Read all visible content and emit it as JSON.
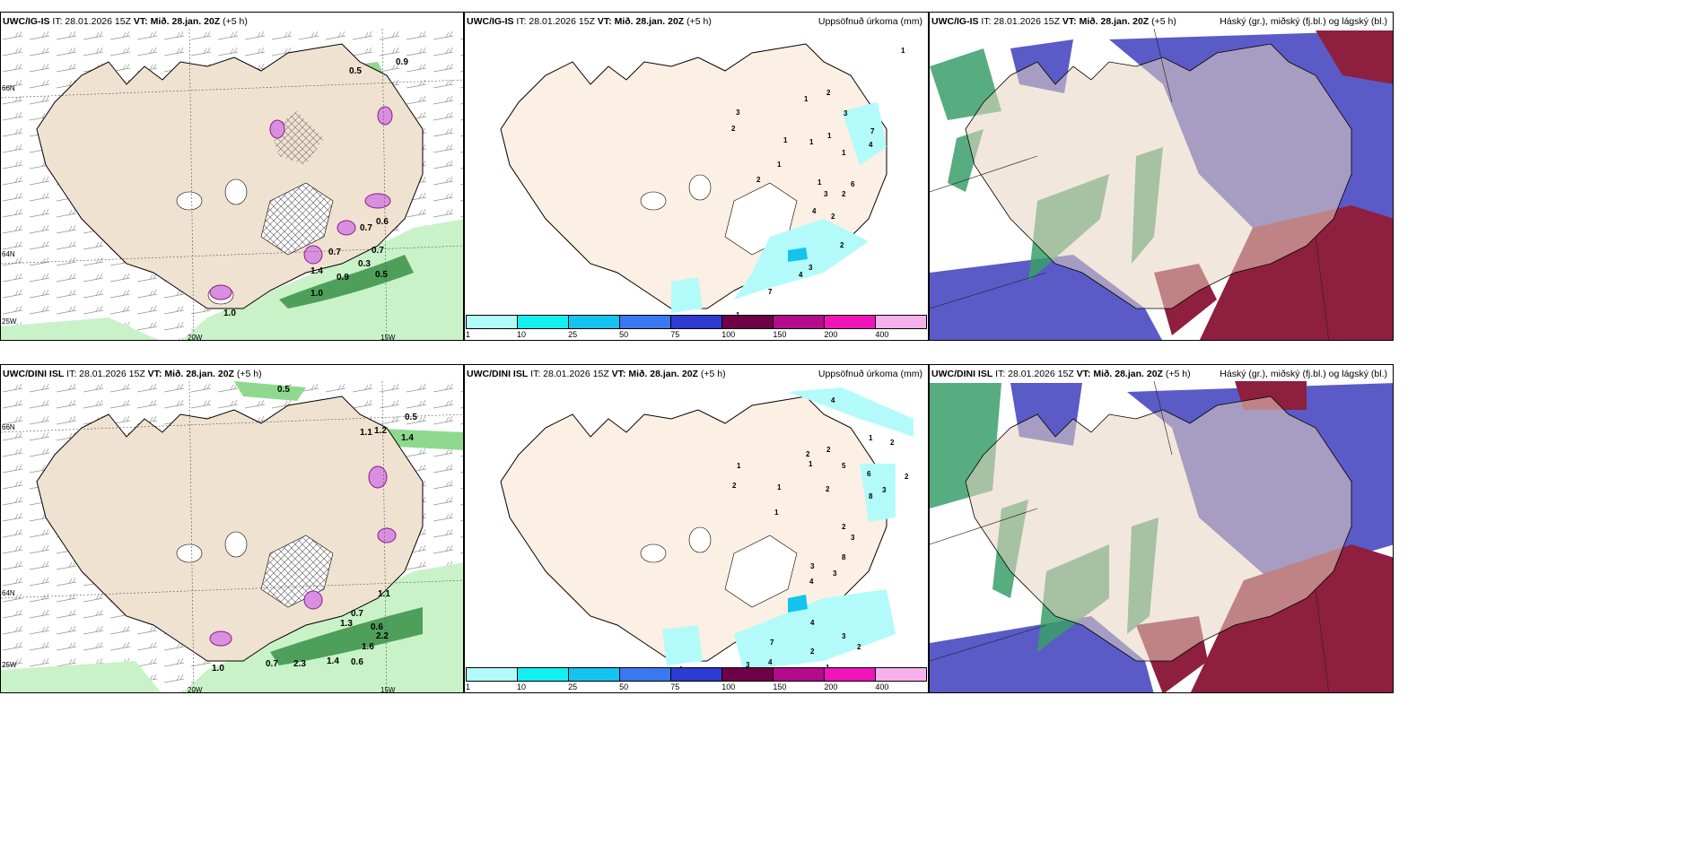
{
  "panels": [
    {
      "model": "UWC/IG-IS",
      "it_label": "IT: 28.01.2026 15Z",
      "vt_label": "VT: Mið. 28.jan. 20Z",
      "lead": "(+5 h)",
      "product": ""
    },
    {
      "model": "UWC/IG-IS",
      "it_label": "IT: 28.01.2026 15Z",
      "vt_label": "VT: Mið. 28.jan. 20Z",
      "lead": "(+5 h)",
      "product": "Uppsöfnuð úrkoma (mm)"
    },
    {
      "model": "UWC/IG-IS",
      "it_label": "IT: 28.01.2026 15Z",
      "vt_label": "VT: Mið. 28.jan. 20Z",
      "lead": "(+5 h)",
      "product": "Háský (gr.), miðský (fj.bl.) og lágský (bl.)"
    },
    {
      "model": "UWC/DINI ISL",
      "it_label": "IT: 28.01.2026 15Z",
      "vt_label": "VT: Mið. 28.jan. 20Z",
      "lead": "(+5 h)",
      "product": ""
    },
    {
      "model": "UWC/DINI ISL",
      "it_label": "IT: 28.01.2026 15Z",
      "vt_label": "VT: Mið. 28.jan. 20Z",
      "lead": "(+5 h)",
      "product": "Uppsöfnuð úrkoma (mm)"
    },
    {
      "model": "UWC/DINI ISL",
      "it_label": "IT: 28.01.2026 15Z",
      "vt_label": "VT: Mið. 28.jan. 20Z",
      "lead": "(+5 h)",
      "product": "Háský (gr.), miðský (fj.bl.) og lágský (bl.)"
    }
  ],
  "axes": {
    "lat_66": "66N",
    "lat_64": "64N",
    "lon_25": "25W",
    "lon_20": "20W",
    "lon_15": "15W"
  },
  "legend": {
    "colors": [
      "#b3fbfb",
      "#14f0f0",
      "#14c3ef",
      "#3a78f0",
      "#2d3bd3",
      "#6e0146",
      "#b40b8c",
      "#f015b8",
      "#f6b1ec"
    ],
    "ticks": [
      "1",
      "10",
      "25",
      "50",
      "75",
      "100",
      "150",
      "200",
      "400"
    ]
  },
  "wind_labels_top": [
    "0.5",
    "0.9",
    "0.7",
    "0.6",
    "0.7",
    "0.9",
    "0.5",
    "0.3",
    "1.0",
    "0.7",
    "1.4",
    "1.0"
  ],
  "wind_labels_bottom": [
    "0.5",
    "0.5",
    "1.1",
    "1.2",
    "1.4",
    "1.1",
    "0.7",
    "1.3",
    "0.6",
    "2.2",
    "1.6",
    "1.0",
    "0.7",
    "2.3",
    "0.6",
    "1.4"
  ],
  "precip_labels_top": [
    "1",
    "1",
    "2",
    "3",
    "2",
    "1",
    "1",
    "1",
    "1",
    "3",
    "7",
    "4",
    "2",
    "6",
    "1",
    "2",
    "4",
    "2",
    "3",
    "2",
    "4",
    "3",
    "7",
    "1",
    "4",
    "1"
  ],
  "precip_labels_bottom": [
    "4",
    "1",
    "2",
    "2",
    "2",
    "1",
    "2",
    "2",
    "1",
    "1",
    "5",
    "6",
    "3",
    "8",
    "2",
    "1",
    "2",
    "3",
    "8",
    "3",
    "4",
    "3",
    "7",
    "2",
    "2",
    "3",
    "4",
    "4",
    "3",
    "1",
    "4"
  ]
}
